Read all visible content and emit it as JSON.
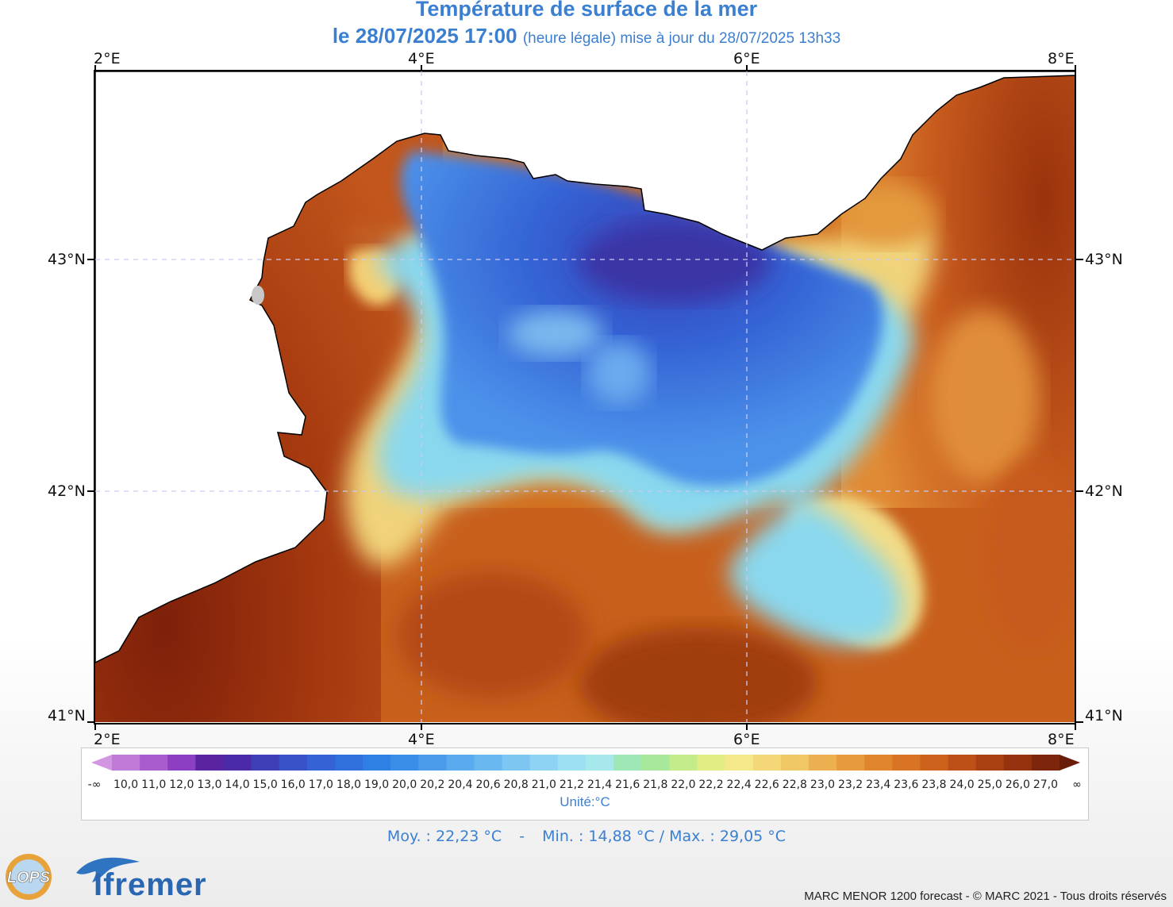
{
  "title": {
    "line1": "Température de surface de la mer",
    "line2_main": "le 28/07/2025 17:00",
    "line2_sub": "(heure légale) mise à jour du 28/07/2025 13h33"
  },
  "axes": {
    "longitude_ticks": [
      "2°E",
      "4°E",
      "6°E",
      "8°E"
    ],
    "latitude_ticks": [
      "43°N",
      "42°N",
      "41°N"
    ]
  },
  "legend": {
    "labels": [
      "-∞",
      "10,0",
      "11,0",
      "12,0",
      "13,0",
      "14,0",
      "15,0",
      "16,0",
      "17,0",
      "18,0",
      "19,0",
      "20,0",
      "20,2",
      "20,4",
      "20,6",
      "20,8",
      "21,0",
      "21,2",
      "21,4",
      "21,6",
      "21,8",
      "22,0",
      "22,2",
      "22,4",
      "22,6",
      "22,8",
      "23,0",
      "23,2",
      "23,4",
      "23,6",
      "23,8",
      "24,0",
      "25,0",
      "26,0",
      "27,0",
      "∞"
    ],
    "colors": [
      "#d296e2",
      "#c07ad8",
      "#a95ccd",
      "#8c3fc0",
      "#5a24a0",
      "#4a2aa6",
      "#3f40b8",
      "#3a52c8",
      "#3562d4",
      "#3070dc",
      "#2e80e4",
      "#3b8ee8",
      "#4a9ceb",
      "#5aaaee",
      "#6ab8f0",
      "#7ec6f2",
      "#8ed3f3",
      "#9ee0f3",
      "#a6e8ec",
      "#9ee8b6",
      "#a8e89a",
      "#c4ec8a",
      "#e2ee84",
      "#f4e88a",
      "#f4d878",
      "#f0c866",
      "#ecb050",
      "#e89a3e",
      "#e0862e",
      "#d87424",
      "#cc621c",
      "#bc5016",
      "#a84012",
      "#94320e",
      "#7e260c",
      "#6a1c0a"
    ],
    "unit": "Unité:°C"
  },
  "stats": {
    "mean": "Moy. : 22,23 °C",
    "sep": "-",
    "minmax": "Min. : 14,88 °C / Max. : 29,05 °C"
  },
  "footer": "MARC MENOR 1200 forecast - © MARC 2021 - Tous droits réservés",
  "logos": {
    "lops": "LOPS",
    "ifremer": "Ifremer"
  }
}
